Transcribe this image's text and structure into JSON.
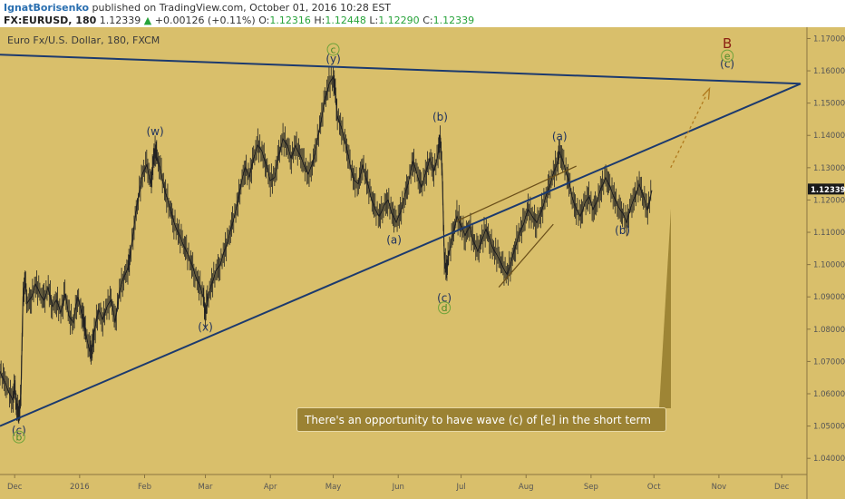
{
  "header": {
    "author": "IgnatBorisenko",
    "published": " published on TradingView.com, October 01, 2016 10:28 EST",
    "symbol": "FX:EURUSD, 180",
    "last": "1.12339",
    "change_arrow": "▲",
    "change": "+0.00126 (+0.11%)",
    "o_label": "O:",
    "o_value": "1.12316",
    "h_label": "H:",
    "h_value": "1.12448",
    "l_label": "L:",
    "l_value": "1.12290",
    "c_label": "C:",
    "c_value": "1.12339"
  },
  "chart_data": {
    "type": "line",
    "title": "Euro Fx/U.S. Dollar, 180, FXCM",
    "price_label": "1.12339",
    "ylim": [
      1.035,
      1.1735
    ],
    "yticks": [
      "1.17000",
      "1.16000",
      "1.15000",
      "1.14000",
      "1.13000",
      "1.12000",
      "1.11000",
      "1.10000",
      "1.09000",
      "1.08000",
      "1.07000",
      "1.06000",
      "1.05000",
      "1.04000"
    ],
    "ytick_values": [
      1.17,
      1.16,
      1.15,
      1.14,
      1.13,
      1.12,
      1.11,
      1.1,
      1.09,
      1.08,
      1.07,
      1.06,
      1.05,
      1.04
    ],
    "xticks": [
      "Dec",
      "2016",
      "Feb",
      "Mar",
      "Apr",
      "May",
      "Jun",
      "Jul",
      "Aug",
      "Sep",
      "Oct",
      "Nov",
      "Dec"
    ],
    "xtick_days": [
      0,
      31,
      62,
      91,
      122,
      152,
      183,
      213,
      244,
      275,
      305,
      336,
      366
    ],
    "xlim_days": [
      -7,
      378
    ],
    "series": [
      {
        "points": [
          [
            -7,
            1.067
          ],
          [
            -5,
            1.064
          ],
          [
            -3,
            1.061
          ],
          [
            -1,
            1.058
          ],
          [
            0,
            1.062
          ],
          [
            1,
            1.056
          ],
          [
            2,
            1.053
          ],
          [
            3,
            1.06
          ],
          [
            4,
            1.09
          ],
          [
            5,
            1.095
          ],
          [
            6,
            1.088
          ],
          [
            8,
            1.09
          ],
          [
            10,
            1.094
          ],
          [
            12,
            1.091
          ],
          [
            14,
            1.089
          ],
          [
            16,
            1.093
          ],
          [
            18,
            1.087
          ],
          [
            20,
            1.089
          ],
          [
            22,
            1.085
          ],
          [
            24,
            1.091
          ],
          [
            26,
            1.084
          ],
          [
            28,
            1.082
          ],
          [
            30,
            1.09
          ],
          [
            32,
            1.085
          ],
          [
            33,
            1.083
          ],
          [
            34,
            1.078
          ],
          [
            36,
            1.073
          ],
          [
            37,
            1.074
          ],
          [
            38,
            1.079
          ],
          [
            40,
            1.086
          ],
          [
            42,
            1.083
          ],
          [
            44,
            1.087
          ],
          [
            46,
            1.089
          ],
          [
            48,
            1.082
          ],
          [
            50,
            1.092
          ],
          [
            52,
            1.096
          ],
          [
            54,
            1.099
          ],
          [
            55,
            1.102
          ],
          [
            57,
            1.112
          ],
          [
            59,
            1.121
          ],
          [
            61,
            1.128
          ],
          [
            63,
            1.131
          ],
          [
            65,
            1.125
          ],
          [
            66,
            1.131
          ],
          [
            67,
            1.136
          ],
          [
            68,
            1.133
          ],
          [
            70,
            1.128
          ],
          [
            72,
            1.122
          ],
          [
            74,
            1.118
          ],
          [
            76,
            1.113
          ],
          [
            78,
            1.11
          ],
          [
            80,
            1.107
          ],
          [
            82,
            1.104
          ],
          [
            84,
            1.101
          ],
          [
            86,
            1.097
          ],
          [
            88,
            1.094
          ],
          [
            90,
            1.09
          ],
          [
            91,
            1.085
          ],
          [
            92,
            1.089
          ],
          [
            94,
            1.094
          ],
          [
            96,
            1.098
          ],
          [
            98,
            1.1
          ],
          [
            100,
            1.104
          ],
          [
            102,
            1.108
          ],
          [
            104,
            1.113
          ],
          [
            106,
            1.118
          ],
          [
            108,
            1.125
          ],
          [
            110,
            1.13
          ],
          [
            112,
            1.127
          ],
          [
            114,
            1.133
          ],
          [
            116,
            1.137
          ],
          [
            118,
            1.135
          ],
          [
            120,
            1.131
          ],
          [
            122,
            1.126
          ],
          [
            124,
            1.127
          ],
          [
            126,
            1.134
          ],
          [
            128,
            1.139
          ],
          [
            130,
            1.137
          ],
          [
            132,
            1.133
          ],
          [
            134,
            1.137
          ],
          [
            136,
            1.134
          ],
          [
            138,
            1.131
          ],
          [
            140,
            1.128
          ],
          [
            142,
            1.131
          ],
          [
            144,
            1.137
          ],
          [
            146,
            1.144
          ],
          [
            148,
            1.151
          ],
          [
            150,
            1.156
          ],
          [
            152,
            1.158
          ],
          [
            153,
            1.153
          ],
          [
            154,
            1.146
          ],
          [
            156,
            1.142
          ],
          [
            158,
            1.137
          ],
          [
            160,
            1.131
          ],
          [
            162,
            1.126
          ],
          [
            164,
            1.125
          ],
          [
            166,
            1.131
          ],
          [
            168,
            1.126
          ],
          [
            170,
            1.121
          ],
          [
            172,
            1.117
          ],
          [
            174,
            1.115
          ],
          [
            176,
            1.118
          ],
          [
            178,
            1.12
          ],
          [
            180,
            1.116
          ],
          [
            182,
            1.113
          ],
          [
            184,
            1.116
          ],
          [
            186,
            1.121
          ],
          [
            188,
            1.126
          ],
          [
            190,
            1.132
          ],
          [
            192,
            1.128
          ],
          [
            194,
            1.124
          ],
          [
            196,
            1.128
          ],
          [
            198,
            1.133
          ],
          [
            200,
            1.129
          ],
          [
            202,
            1.134
          ],
          [
            203,
            1.14
          ],
          [
            204,
            1.128
          ],
          [
            205,
            1.102
          ],
          [
            206,
            1.098
          ],
          [
            207,
            1.103
          ],
          [
            209,
            1.109
          ],
          [
            211,
            1.115
          ],
          [
            213,
            1.112
          ],
          [
            215,
            1.109
          ],
          [
            217,
            1.112
          ],
          [
            219,
            1.107
          ],
          [
            221,
            1.104
          ],
          [
            223,
            1.108
          ],
          [
            225,
            1.111
          ],
          [
            227,
            1.107
          ],
          [
            229,
            1.104
          ],
          [
            231,
            1.102
          ],
          [
            233,
            1.099
          ],
          [
            235,
            1.097
          ],
          [
            237,
            1.101
          ],
          [
            239,
            1.106
          ],
          [
            241,
            1.11
          ],
          [
            243,
            1.113
          ],
          [
            245,
            1.117
          ],
          [
            247,
            1.115
          ],
          [
            249,
            1.113
          ],
          [
            251,
            1.116
          ],
          [
            253,
            1.12
          ],
          [
            255,
            1.124
          ],
          [
            257,
            1.128
          ],
          [
            259,
            1.132
          ],
          [
            260,
            1.135
          ],
          [
            262,
            1.131
          ],
          [
            264,
            1.127
          ],
          [
            266,
            1.121
          ],
          [
            268,
            1.117
          ],
          [
            270,
            1.115
          ],
          [
            272,
            1.119
          ],
          [
            274,
            1.121
          ],
          [
            276,
            1.117
          ],
          [
            278,
            1.12
          ],
          [
            280,
            1.124
          ],
          [
            282,
            1.127
          ],
          [
            284,
            1.124
          ],
          [
            286,
            1.121
          ],
          [
            288,
            1.118
          ],
          [
            290,
            1.116
          ],
          [
            292,
            1.113
          ],
          [
            294,
            1.118
          ],
          [
            296,
            1.121
          ],
          [
            298,
            1.125
          ],
          [
            300,
            1.121
          ],
          [
            302,
            1.117
          ],
          [
            304,
            1.123
          ]
        ]
      }
    ],
    "trendlines": [
      {
        "from": [
          -7,
          1.05
        ],
        "to": [
          375,
          1.156
        ]
      },
      {
        "from": [
          -7,
          1.165
        ],
        "to": [
          375,
          1.156
        ]
      }
    ],
    "wave_labels": [
      {
        "text": "(c)",
        "x": 2,
        "y": 1.0475
      },
      {
        "text": "(w)",
        "x": 67,
        "y": 1.14
      },
      {
        "text": "(x)",
        "x": 91,
        "y": 1.0795
      },
      {
        "text": "(y)",
        "x": 152,
        "y": 1.1625
      },
      {
        "text": "(a)",
        "x": 181,
        "y": 1.1065
      },
      {
        "text": "(b)",
        "x": 203,
        "y": 1.1445
      },
      {
        "text": "(c)",
        "x": 205,
        "y": 1.0885
      },
      {
        "text": "(a)",
        "x": 260,
        "y": 1.1385
      },
      {
        "text": "(b)",
        "x": 290,
        "y": 1.1095
      },
      {
        "text": "(c)",
        "x": 340,
        "y": 1.161
      }
    ],
    "circle_labels": [
      {
        "text": "b",
        "x": 2,
        "y": 1.0455
      },
      {
        "text": "c",
        "x": 152,
        "y": 1.1655
      },
      {
        "text": "d",
        "x": 205,
        "y": 1.0855
      },
      {
        "text": "e",
        "x": 340,
        "y": 1.1635
      }
    ],
    "big_label": {
      "text": "B",
      "x": 340,
      "y": 1.167
    },
    "annotation": "There's an opportunity to have wave (c) of [e] in the short term",
    "colors": {
      "background": "#d9bf6b",
      "trendline": "#1c3a6e",
      "candles": "#222222",
      "projection": "#b07a1e",
      "channel": "#6b4f1a",
      "note": "#9b8233"
    }
  }
}
